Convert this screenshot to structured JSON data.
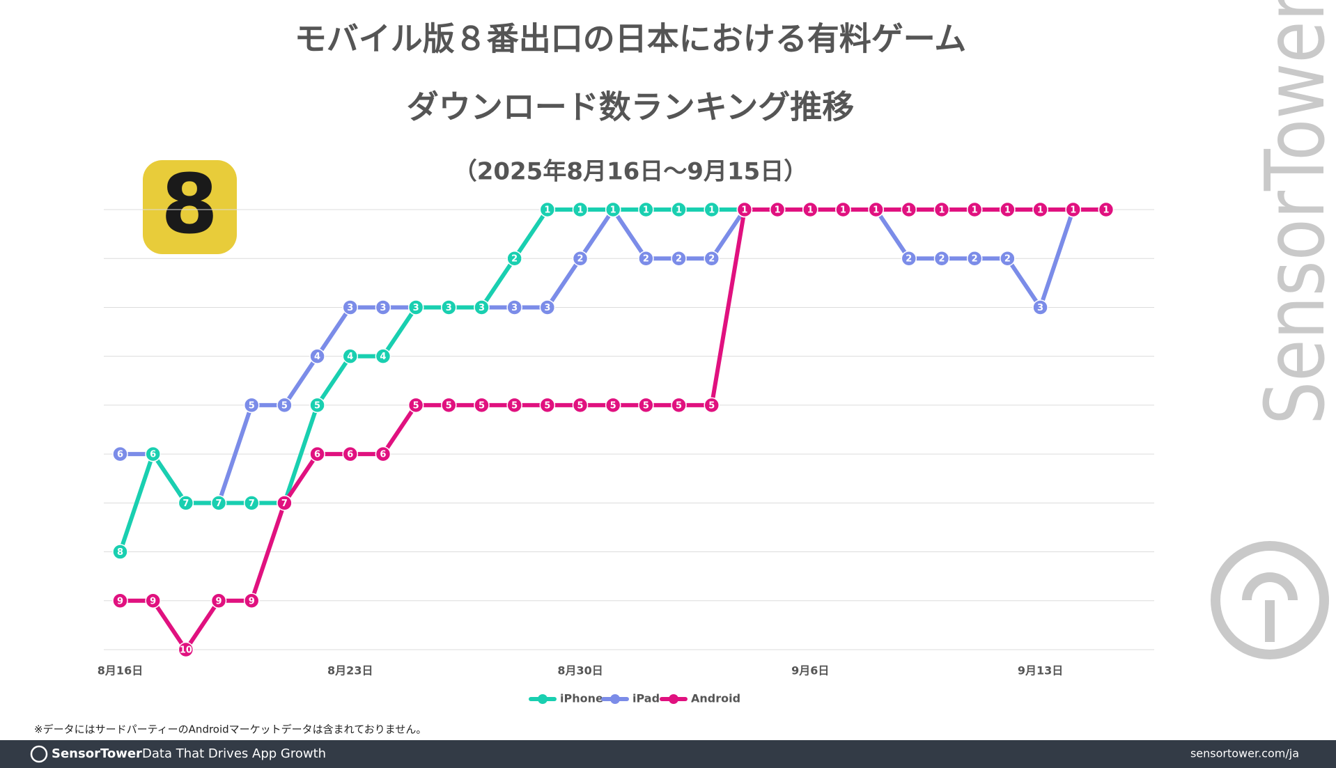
{
  "chart_data": {
    "type": "line",
    "title": [
      "モバイル版８番出口の日本における有料ゲーム",
      "ダウンロード数ランキング推移"
    ],
    "subtitle": "（2025年8月16日〜9月15日）",
    "categories": [
      "8月16日",
      null,
      null,
      null,
      null,
      null,
      null,
      "8月23日",
      null,
      null,
      null,
      null,
      null,
      null,
      "8月30日",
      null,
      null,
      null,
      null,
      null,
      null,
      "9月6日",
      null,
      null,
      null,
      null,
      null,
      null,
      "9月13日",
      null,
      null
    ],
    "series": [
      {
        "name": "iPad",
        "color": "#7b8ce8",
        "values": [
          6,
          6,
          7,
          7,
          5,
          5,
          4,
          3,
          3,
          3,
          3,
          3,
          3,
          3,
          2,
          1,
          2,
          2,
          2,
          1,
          1,
          1,
          1,
          1,
          2,
          2,
          2,
          2,
          3,
          1,
          1
        ]
      },
      {
        "name": "iPhone",
        "color": "#19cfb0",
        "values": [
          8,
          6,
          7,
          7,
          7,
          7,
          5,
          4,
          4,
          3,
          3,
          3,
          2,
          1,
          1,
          1,
          1,
          1,
          1,
          1,
          1,
          1,
          1,
          1,
          1,
          1,
          1,
          1,
          1,
          1,
          1
        ]
      },
      {
        "name": "Android",
        "color": "#e0117f",
        "values": [
          9,
          9,
          10,
          9,
          9,
          7,
          6,
          6,
          6,
          5,
          5,
          5,
          5,
          5,
          5,
          5,
          5,
          5,
          5,
          1,
          1,
          1,
          1,
          1,
          1,
          1,
          1,
          1,
          1,
          1,
          1
        ]
      }
    ],
    "legend_order": [
      1,
      0,
      2
    ],
    "ylim": [
      10,
      1
    ],
    "yticks": [
      1,
      2,
      3,
      4,
      5,
      6,
      7,
      8,
      9,
      10
    ],
    "grid": true,
    "legend": "bottom"
  },
  "icon_label": "8",
  "footnote": "※データにはサードパーティーのAndroidマーケットデータは含まれておりません。",
  "watermark": "SensorTower",
  "footer": {
    "brand": "SensorTower",
    "tagline": "Data That Drives App Growth",
    "url": "sensortower.com/ja"
  }
}
